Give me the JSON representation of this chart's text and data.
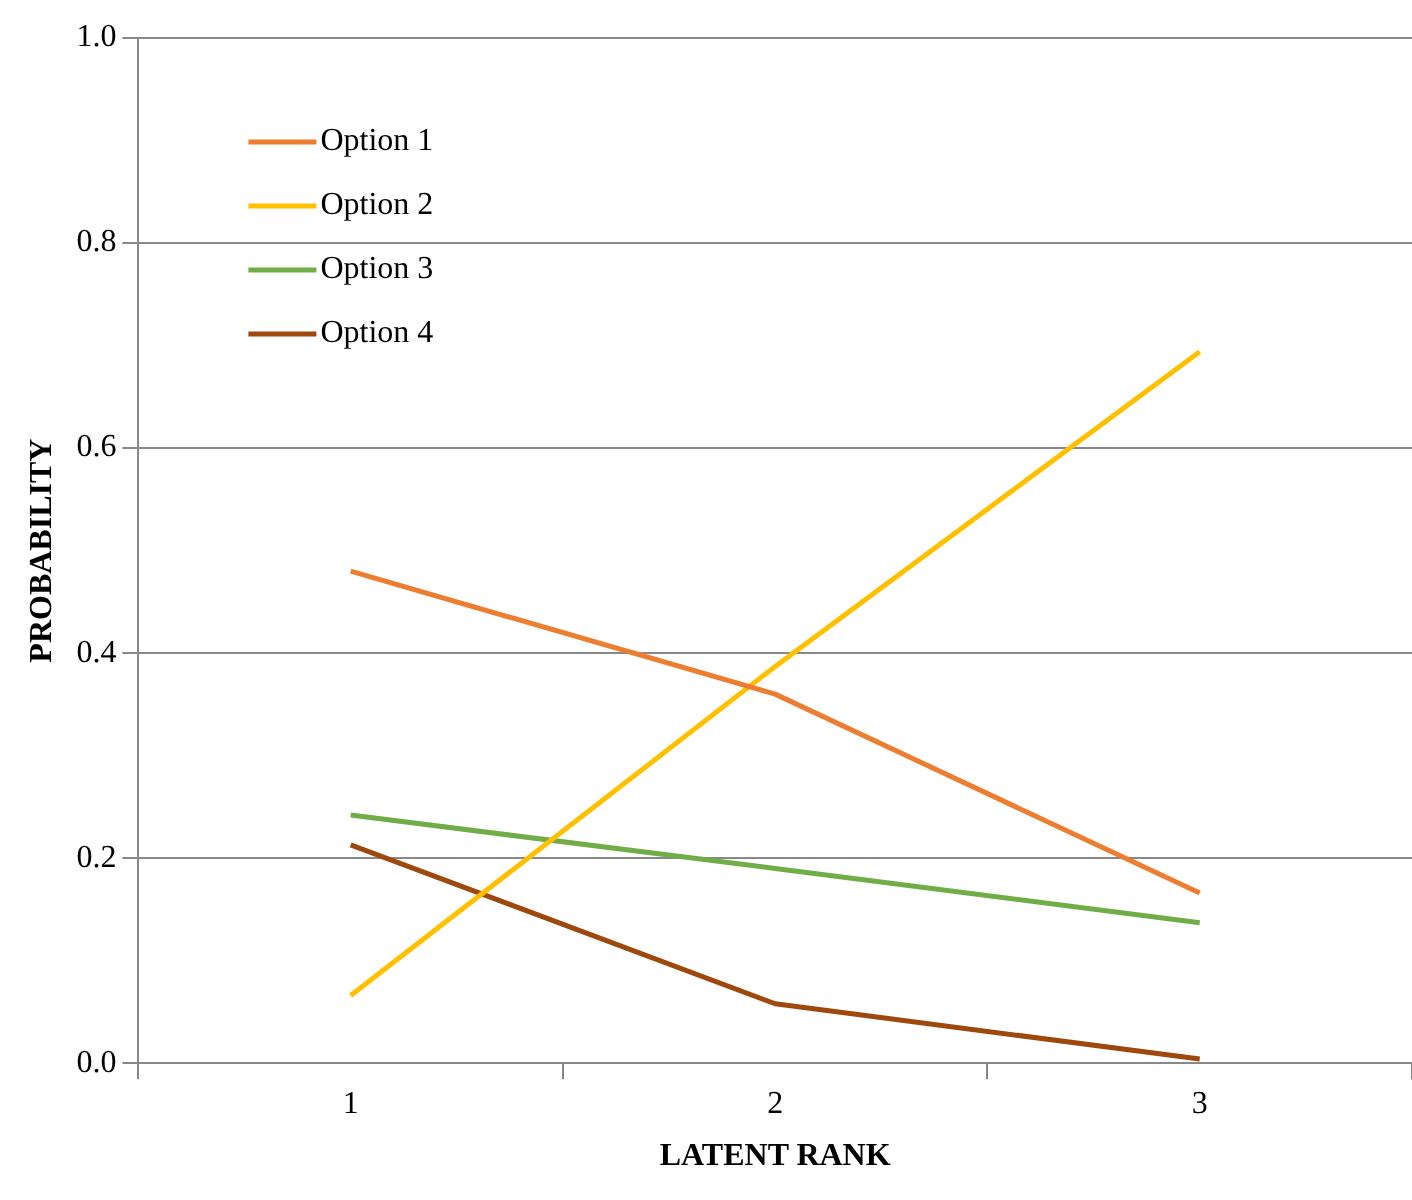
{
  "chart_data": {
    "type": "line",
    "xlabel": "LATENT RANK",
    "ylabel": "PROBABILITY",
    "categories": [
      "1",
      "2",
      "3"
    ],
    "series": [
      {
        "name": "Option 1",
        "color": "#ed7d31",
        "values": [
          0.48,
          0.36,
          0.166
        ]
      },
      {
        "name": "Option 2",
        "color": "#ffc000",
        "values": [
          0.066,
          0.387,
          0.694
        ]
      },
      {
        "name": "Option 3",
        "color": "#70ad47",
        "values": [
          0.242,
          0.19,
          0.137
        ]
      },
      {
        "name": "Option 4",
        "color": "#9e480e",
        "values": [
          0.213,
          0.058,
          0.004
        ]
      }
    ],
    "ylim": [
      0,
      1
    ],
    "yticks": [
      {
        "value": 0,
        "label": "0.0"
      },
      {
        "value": 0.2,
        "label": "0.2"
      },
      {
        "value": 0.4,
        "label": "0.4"
      },
      {
        "value": 0.6,
        "label": "0.6"
      },
      {
        "value": 0.8,
        "label": "0.8"
      },
      {
        "value": 1,
        "label": "1.0"
      }
    ],
    "grid": "y",
    "legend": "top left",
    "marker": "none",
    "line_style": "solid"
  }
}
